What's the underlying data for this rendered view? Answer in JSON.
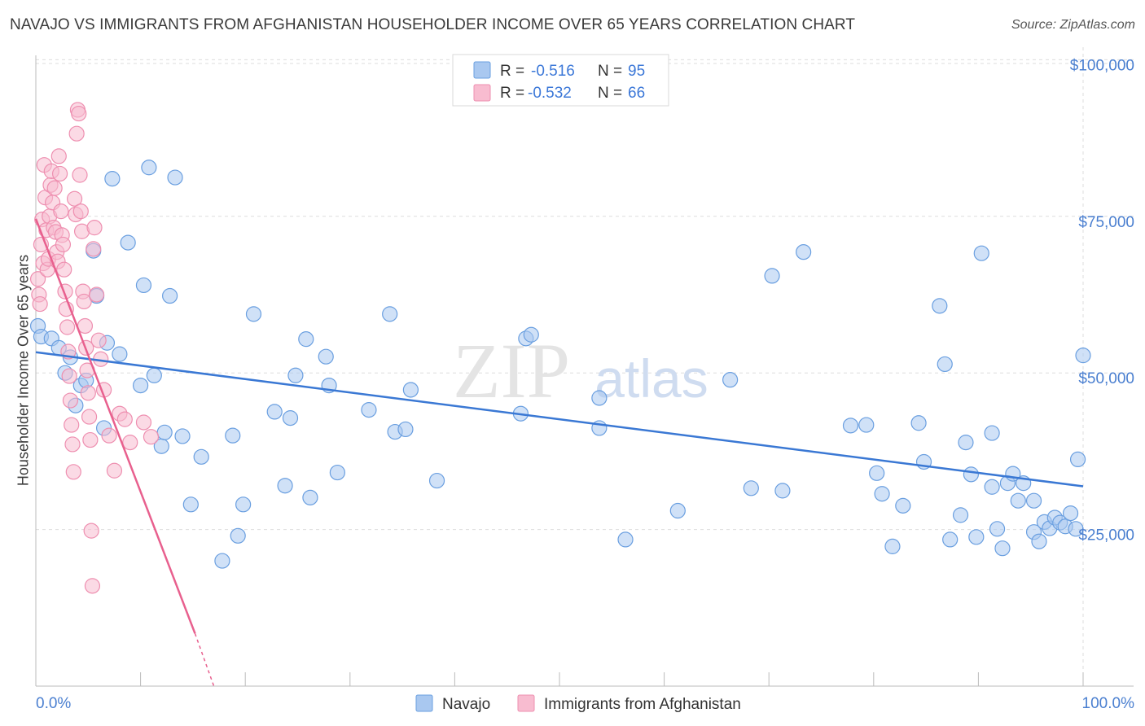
{
  "chart_data": {
    "type": "scatter",
    "title": "NAVAJO VS IMMIGRANTS FROM AFGHANISTAN HOUSEHOLDER INCOME OVER 65 YEARS CORRELATION CHART",
    "source": "Source: ZipAtlas.com",
    "xlabel": "",
    "ylabel": "Householder Income Over 65 years",
    "xlim": [
      0,
      100
    ],
    "ylim": [
      0,
      102000
    ],
    "x_tick_labels": [
      "0.0%",
      "100.0%"
    ],
    "y_ticks": [
      {
        "value": 25000,
        "label": "$25,000"
      },
      {
        "value": 50000,
        "label": "$50,000"
      },
      {
        "value": 75000,
        "label": "$75,000"
      },
      {
        "value": 100000,
        "label": "$100,000"
      }
    ],
    "watermark": {
      "zip": "ZIP",
      "atlas": "atlas"
    },
    "colors": {
      "navajo_fill": "#a9c8f0",
      "navajo_stroke": "#6a9fe0",
      "navajo_line": "#3a78d4",
      "afghan_fill": "#f8bcd0",
      "afghan_stroke": "#ee8fb0",
      "afghan_line": "#e8608e",
      "grid": "#dddddd",
      "axis_label": "#4a7fd0"
    },
    "legend": {
      "rows": [
        {
          "r_label": "R =",
          "r_value": "-0.516",
          "n_label": "N =",
          "n_value": "95"
        },
        {
          "r_label": "R =",
          "r_value": "-0.532",
          "n_label": "N =",
          "n_value": "66"
        }
      ]
    },
    "series": [
      {
        "name": "Navajo",
        "trendline": {
          "x": [
            0,
            100
          ],
          "y": [
            53300,
            31900
          ]
        },
        "points": [
          [
            0.2,
            57500
          ],
          [
            0.5,
            55800
          ],
          [
            1.5,
            55500
          ],
          [
            2.2,
            54000
          ],
          [
            2.8,
            50000
          ],
          [
            3.3,
            52500
          ],
          [
            3.8,
            44800
          ],
          [
            4.3,
            48000
          ],
          [
            4.8,
            48800
          ],
          [
            5.5,
            69500
          ],
          [
            5.8,
            62300
          ],
          [
            6.5,
            41200
          ],
          [
            6.8,
            54800
          ],
          [
            7.3,
            81000
          ],
          [
            8.0,
            53000
          ],
          [
            8.8,
            70800
          ],
          [
            10.0,
            48000
          ],
          [
            10.3,
            64000
          ],
          [
            10.8,
            82800
          ],
          [
            11.3,
            49600
          ],
          [
            12.0,
            38300
          ],
          [
            12.3,
            40500
          ],
          [
            12.8,
            62300
          ],
          [
            13.3,
            81200
          ],
          [
            14.0,
            39900
          ],
          [
            14.8,
            29000
          ],
          [
            15.8,
            36600
          ],
          [
            17.8,
            20000
          ],
          [
            18.8,
            40000
          ],
          [
            19.3,
            24000
          ],
          [
            19.8,
            29000
          ],
          [
            20.8,
            59400
          ],
          [
            22.8,
            43800
          ],
          [
            23.8,
            32000
          ],
          [
            24.3,
            42800
          ],
          [
            24.8,
            49600
          ],
          [
            25.8,
            55400
          ],
          [
            26.2,
            30100
          ],
          [
            27.7,
            52600
          ],
          [
            28.0,
            48000
          ],
          [
            28.8,
            34100
          ],
          [
            31.8,
            44100
          ],
          [
            33.8,
            59400
          ],
          [
            34.3,
            40600
          ],
          [
            35.3,
            41000
          ],
          [
            35.8,
            47300
          ],
          [
            38.3,
            32800
          ],
          [
            46.3,
            43500
          ],
          [
            46.8,
            55500
          ],
          [
            47.3,
            56100
          ],
          [
            53.8,
            46000
          ],
          [
            53.8,
            41200
          ],
          [
            56.3,
            23400
          ],
          [
            61.3,
            28000
          ],
          [
            66.3,
            48900
          ],
          [
            68.3,
            31600
          ],
          [
            70.3,
            65500
          ],
          [
            71.3,
            31200
          ],
          [
            73.3,
            69300
          ],
          [
            77.8,
            41600
          ],
          [
            79.3,
            41700
          ],
          [
            80.3,
            34000
          ],
          [
            80.8,
            30700
          ],
          [
            81.8,
            22300
          ],
          [
            82.8,
            28800
          ],
          [
            84.3,
            42000
          ],
          [
            84.8,
            35800
          ],
          [
            86.3,
            60700
          ],
          [
            86.8,
            51400
          ],
          [
            87.3,
            23400
          ],
          [
            88.3,
            27300
          ],
          [
            88.8,
            38900
          ],
          [
            89.3,
            33800
          ],
          [
            89.8,
            23800
          ],
          [
            90.3,
            69100
          ],
          [
            91.3,
            40400
          ],
          [
            91.3,
            31800
          ],
          [
            91.8,
            25100
          ],
          [
            92.3,
            22000
          ],
          [
            92.8,
            32400
          ],
          [
            93.3,
            33900
          ],
          [
            93.8,
            29600
          ],
          [
            94.3,
            32400
          ],
          [
            95.3,
            29600
          ],
          [
            95.3,
            24600
          ],
          [
            95.8,
            23100
          ],
          [
            96.3,
            26200
          ],
          [
            96.8,
            25200
          ],
          [
            97.3,
            26900
          ],
          [
            97.8,
            26100
          ],
          [
            98.3,
            25500
          ],
          [
            99.3,
            25100
          ],
          [
            99.5,
            36200
          ],
          [
            100.0,
            52800
          ],
          [
            98.8,
            27600
          ]
        ]
      },
      {
        "name": "Immigrants from Afghanistan",
        "trendline": {
          "x": [
            0,
            15.2
          ],
          "y": [
            74600,
            8400
          ]
        },
        "trendline_dashed": {
          "x": [
            15.2,
            17.0
          ],
          "y": [
            8400,
            0
          ]
        },
        "points": [
          [
            0.2,
            65000
          ],
          [
            0.3,
            62500
          ],
          [
            0.4,
            61000
          ],
          [
            0.5,
            70500
          ],
          [
            0.6,
            74500
          ],
          [
            0.7,
            67500
          ],
          [
            0.8,
            83200
          ],
          [
            0.9,
            78000
          ],
          [
            1.0,
            72800
          ],
          [
            1.1,
            66500
          ],
          [
            1.2,
            68200
          ],
          [
            1.3,
            75000
          ],
          [
            1.4,
            80000
          ],
          [
            1.5,
            82200
          ],
          [
            1.6,
            77200
          ],
          [
            1.7,
            73200
          ],
          [
            1.8,
            79500
          ],
          [
            1.9,
            72500
          ],
          [
            2.0,
            69300
          ],
          [
            2.1,
            67800
          ],
          [
            2.2,
            84600
          ],
          [
            2.3,
            81800
          ],
          [
            2.4,
            75800
          ],
          [
            2.5,
            72000
          ],
          [
            2.6,
            70500
          ],
          [
            2.7,
            66500
          ],
          [
            2.8,
            63000
          ],
          [
            2.9,
            60200
          ],
          [
            3.0,
            57300
          ],
          [
            3.1,
            53400
          ],
          [
            3.2,
            49500
          ],
          [
            3.3,
            45600
          ],
          [
            3.4,
            41700
          ],
          [
            3.5,
            38600
          ],
          [
            3.6,
            34200
          ],
          [
            3.7,
            77800
          ],
          [
            3.8,
            75300
          ],
          [
            3.9,
            88200
          ],
          [
            4.0,
            92000
          ],
          [
            4.1,
            91400
          ],
          [
            4.2,
            81600
          ],
          [
            4.3,
            75800
          ],
          [
            4.4,
            72600
          ],
          [
            4.5,
            63000
          ],
          [
            4.6,
            61400
          ],
          [
            4.7,
            57500
          ],
          [
            4.8,
            54000
          ],
          [
            4.9,
            50400
          ],
          [
            5.0,
            46800
          ],
          [
            5.1,
            43000
          ],
          [
            5.2,
            39300
          ],
          [
            5.3,
            24800
          ],
          [
            5.4,
            16000
          ],
          [
            5.5,
            69800
          ],
          [
            5.6,
            73200
          ],
          [
            5.8,
            62500
          ],
          [
            6.0,
            55200
          ],
          [
            6.2,
            52200
          ],
          [
            6.5,
            47300
          ],
          [
            7.0,
            40000
          ],
          [
            7.5,
            34400
          ],
          [
            8.0,
            43500
          ],
          [
            8.5,
            42600
          ],
          [
            9.0,
            38900
          ],
          [
            10.3,
            42100
          ],
          [
            11.0,
            39800
          ]
        ]
      }
    ],
    "bottom_legend": [
      "Navajo",
      "Immigrants from Afghanistan"
    ]
  }
}
